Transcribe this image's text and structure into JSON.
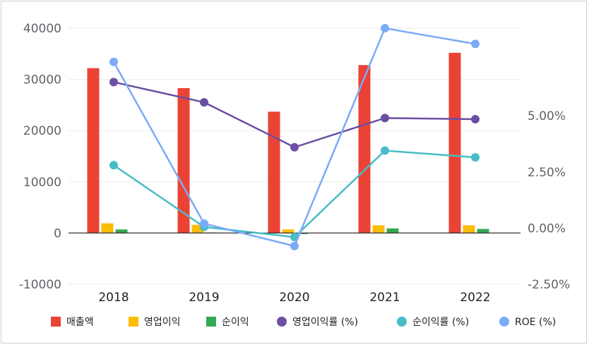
{
  "chart_data": {
    "type": "bar+line",
    "categories": [
      "2018",
      "2019",
      "2020",
      "2021",
      "2022"
    ],
    "bar_series": [
      {
        "name": "매출액",
        "color": "#ea4335",
        "values": [
          32200,
          28300,
          23700,
          32800,
          35200
        ]
      },
      {
        "name": "영업이익",
        "color": "#fbbc04",
        "values": [
          1900,
          1600,
          700,
          1500,
          1500
        ]
      },
      {
        "name": "순이익",
        "color": "#34a853",
        "values": [
          700,
          100,
          -200,
          900,
          800
        ]
      }
    ],
    "line_series": [
      {
        "name": "영업이익률 (%)",
        "color": "#6a4fa3",
        "values": [
          6.5,
          5.6,
          3.6,
          4.9,
          4.85
        ]
      },
      {
        "name": "순이익률 (%)",
        "color": "#46bdc6",
        "values": [
          2.8,
          0.05,
          -0.4,
          3.45,
          3.15
        ]
      },
      {
        "name": "ROE (%)",
        "color": "#7baaf7",
        "values": [
          7.4,
          0.2,
          -0.8,
          8.9,
          8.2
        ]
      }
    ],
    "y_left": {
      "min": -10000,
      "max": 40000,
      "ticks": [
        40000,
        30000,
        20000,
        10000,
        0,
        -10000
      ]
    },
    "y_right": {
      "min": -2.5,
      "max": 8.9,
      "ticks": [
        5.0,
        2.5,
        0.0,
        -2.5
      ],
      "tick_labels": [
        "5.00%",
        "2.50%",
        "0.00%",
        "-2.50%"
      ]
    },
    "grid": true,
    "legend_position": "bottom"
  }
}
